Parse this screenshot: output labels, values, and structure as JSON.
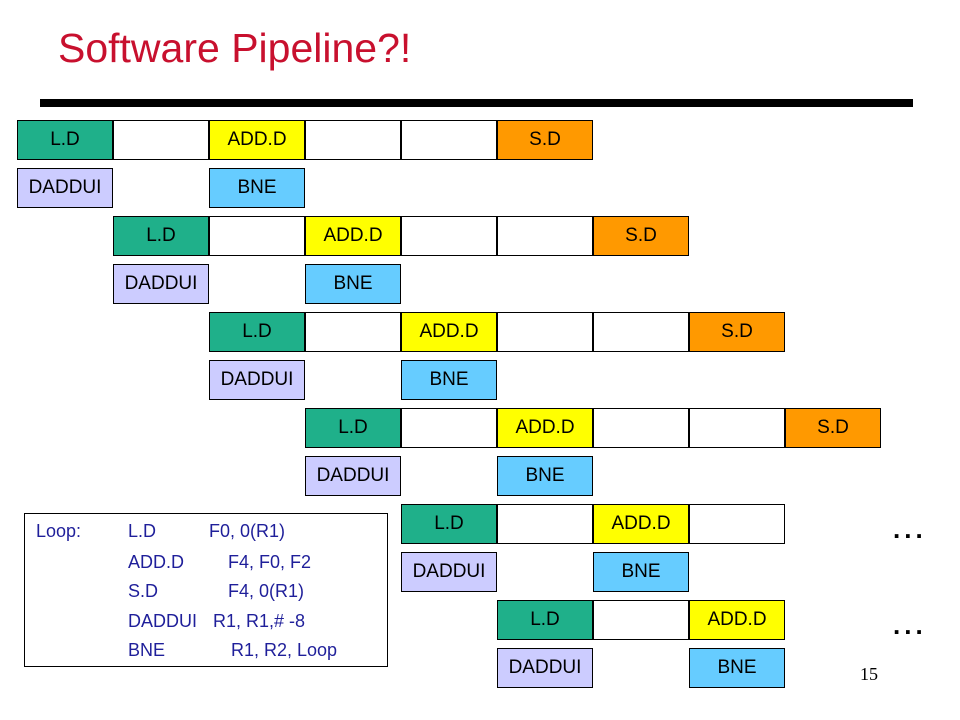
{
  "title": "Software Pipeline?!",
  "colors": {
    "title": "#c8102e",
    "load": "#1fb08a",
    "add": "#ffff00",
    "store": "#ff9900",
    "addr": "#ccccff",
    "branch": "#66ccff",
    "empty": "#ffffff"
  },
  "iterations": [
    {
      "top": [
        "L.D",
        "",
        "ADD.D",
        "",
        "",
        "S.D"
      ],
      "bottom": [
        "DADDUI",
        "",
        "BNE"
      ]
    },
    {
      "top": [
        "L.D",
        "",
        "ADD.D",
        "",
        "",
        "S.D"
      ],
      "bottom": [
        "DADDUI",
        "",
        "BNE"
      ]
    },
    {
      "top": [
        "L.D",
        "",
        "ADD.D",
        "",
        "",
        "S.D"
      ],
      "bottom": [
        "DADDUI",
        "",
        "BNE"
      ]
    },
    {
      "top": [
        "L.D",
        "",
        "ADD.D",
        "",
        "",
        "S.D"
      ],
      "bottom": [
        "DADDUI",
        "",
        "BNE"
      ]
    },
    {
      "top": [
        "L.D",
        "",
        "ADD.D",
        ""
      ],
      "bottom": [
        "DADDUI",
        "",
        "BNE"
      ]
    },
    {
      "top": [
        "L.D",
        "",
        "ADD.D"
      ],
      "bottom": [
        "DADDUI",
        "",
        "BNE"
      ]
    }
  ],
  "ellipsis": [
    "...",
    "..."
  ],
  "code": [
    {
      "label": "Loop:",
      "op": "L.D",
      "args": "F0, 0(R1)"
    },
    {
      "label": "",
      "op": "ADD.D",
      "args": "F4, F0, F2"
    },
    {
      "label": "",
      "op": "S.D",
      "args": "F4, 0(R1)"
    },
    {
      "label": "",
      "op": "DADDUI",
      "args": "R1, R1,# -8"
    },
    {
      "label": "",
      "op": "BNE",
      "args": "R1, R2, Loop"
    }
  ],
  "page_number": "15"
}
